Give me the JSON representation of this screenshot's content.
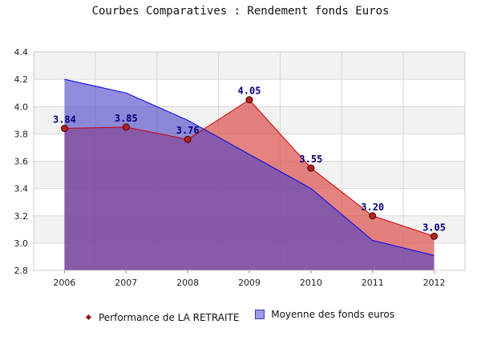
{
  "title": "Courbes Comparatives : Rendement fonds Euros",
  "chart_data": {
    "type": "area",
    "categories": [
      "2006",
      "2007",
      "2008",
      "2009",
      "2010",
      "2011",
      "2012"
    ],
    "ylim": [
      2.8,
      4.4
    ],
    "yticks": [
      "2.8",
      "3.0",
      "3.2",
      "3.4",
      "3.6",
      "3.8",
      "4.0",
      "4.2",
      "4.4"
    ],
    "grid": true,
    "legend_position": "bottom",
    "series": [
      {
        "name": "Performance de LA RETRAITE",
        "values": [
          3.84,
          3.85,
          3.76,
          4.05,
          3.55,
          3.2,
          3.05
        ],
        "labels": [
          "3.84",
          "3.85",
          "3.76",
          "4.05",
          "3.55",
          "3.20",
          "3.05"
        ],
        "fill": "#d9534f",
        "line": "#cc0000",
        "marker": "#b22222"
      },
      {
        "name": "Moyenne des fonds euros",
        "values": [
          4.2,
          4.1,
          3.9,
          3.65,
          3.4,
          3.02,
          2.91
        ],
        "fill": "#4a3fc7",
        "line": "#0000ee"
      }
    ]
  }
}
